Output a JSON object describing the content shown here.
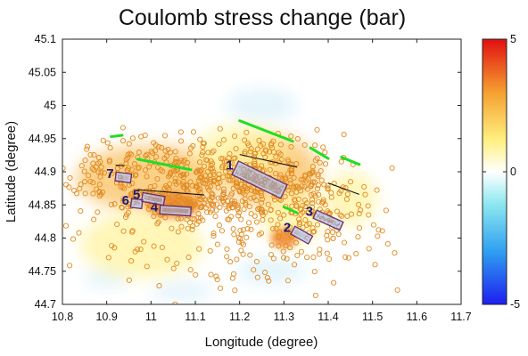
{
  "chart_data": {
    "type": "heatmap",
    "title": "Coulomb stress change (bar)",
    "xlabel": "Longitude (degree)",
    "ylabel": "Latitude  (degree)",
    "xlim": [
      10.8,
      11.7
    ],
    "ylim": [
      44.7,
      45.1
    ],
    "xticks": [
      "10.8",
      "10.9",
      "11",
      "11.1",
      "11.2",
      "11.3",
      "11.4",
      "11.5",
      "11.6",
      "11.7"
    ],
    "yticks": [
      "44.7",
      "44.75",
      "44.8",
      "44.85",
      "44.9",
      "44.95",
      "45",
      "45.05",
      "45.1"
    ],
    "colorbar": {
      "min": -5,
      "max": 5,
      "ticks": [
        "5",
        "0",
        "-5"
      ]
    },
    "grid": false,
    "stress_lobes": [
      {
        "lon": 11.0,
        "lat": 44.89,
        "rx": 0.17,
        "ry": 0.05,
        "level": 2.2
      },
      {
        "lon": 11.27,
        "lat": 44.9,
        "rx": 0.11,
        "ry": 0.055,
        "level": 2.4
      },
      {
        "lon": 11.32,
        "lat": 44.83,
        "rx": 0.07,
        "ry": 0.04,
        "level": 1.8
      },
      {
        "lon": 10.98,
        "lat": 44.79,
        "rx": 0.14,
        "ry": 0.05,
        "level": 1.3
      },
      {
        "lon": 11.2,
        "lat": 44.93,
        "rx": 0.1,
        "ry": 0.04,
        "level": 1.0
      },
      {
        "lon": 11.45,
        "lat": 44.86,
        "rx": 0.06,
        "ry": 0.04,
        "level": 1.2
      },
      {
        "lon": 11.05,
        "lat": 44.85,
        "rx": 0.06,
        "ry": 0.02,
        "level": 3.0
      },
      {
        "lon": 11.3,
        "lat": 44.8,
        "rx": 0.03,
        "ry": 0.015,
        "level": 3.2
      }
    ],
    "negative_lobes": [
      {
        "lon": 11.27,
        "lat": 44.75,
        "rx": 0.08,
        "ry": 0.02,
        "level": -0.6
      },
      {
        "lon": 11.25,
        "lat": 45.0,
        "rx": 0.08,
        "ry": 0.025,
        "level": -0.5
      },
      {
        "lon": 11.07,
        "lat": 44.72,
        "rx": 0.07,
        "ry": 0.015,
        "level": -0.4
      },
      {
        "lon": 10.9,
        "lat": 44.74,
        "rx": 0.05,
        "ry": 0.015,
        "level": -0.3
      }
    ],
    "faults": [
      {
        "label": "1",
        "lon": [
          11.19,
          11.3
        ],
        "lat": [
          44.906,
          44.87
        ]
      },
      {
        "label": "2",
        "lon": [
          11.32,
          11.36
        ],
        "lat": [
          44.812,
          44.797
        ]
      },
      {
        "label": "3",
        "lon": [
          11.37,
          11.43
        ],
        "lat": [
          44.836,
          44.818
        ]
      },
      {
        "label": "4",
        "lon": [
          11.02,
          11.09
        ],
        "lat": [
          44.843,
          44.84
        ]
      },
      {
        "label": "5",
        "lon": [
          10.98,
          11.03
        ],
        "lat": [
          44.862,
          44.856
        ]
      },
      {
        "label": "6",
        "lon": [
          10.955,
          10.98
        ],
        "lat": [
          44.853,
          44.851
        ]
      },
      {
        "label": "7",
        "lon": [
          10.92,
          10.955
        ],
        "lat": [
          44.893,
          44.89
        ]
      }
    ],
    "green_traces": [
      {
        "lon": [
          10.91,
          10.935
        ],
        "lat": [
          44.953,
          44.955
        ]
      },
      {
        "lon": [
          10.97,
          11.09
        ],
        "lat": [
          44.919,
          44.903
        ]
      },
      {
        "lon": [
          11.2,
          11.32
        ],
        "lat": [
          44.977,
          44.946
        ]
      },
      {
        "lon": [
          11.36,
          11.4
        ],
        "lat": [
          44.936,
          44.92
        ]
      },
      {
        "lon": [
          11.43,
          11.47
        ],
        "lat": [
          44.922,
          44.911
        ]
      },
      {
        "lon": [
          11.3,
          11.33
        ],
        "lat": [
          44.847,
          44.838
        ]
      }
    ],
    "black_traces": [
      {
        "lon": [
          11.2,
          11.33
        ],
        "lat": [
          44.926,
          44.907
        ]
      },
      {
        "lon": [
          10.97,
          11.12
        ],
        "lat": [
          44.873,
          44.865
        ]
      },
      {
        "lon": [
          11.4,
          11.47
        ],
        "lat": [
          44.883,
          44.866
        ]
      },
      {
        "lon": [
          10.92,
          10.94
        ],
        "lat": [
          44.91,
          44.909
        ]
      }
    ],
    "seismicity": {
      "marker": "open-circle",
      "color": "#e08a20",
      "count": 900
    }
  }
}
